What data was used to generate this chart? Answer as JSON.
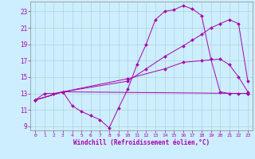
{
  "xlabel": "Windchill (Refroidissement éolien,°C)",
  "background_color": "#cceeff",
  "grid_color": "#aacccc",
  "line_color": "#aa00aa",
  "xlim": [
    -0.5,
    23.5
  ],
  "ylim": [
    8.5,
    24.2
  ],
  "yticks": [
    9,
    11,
    13,
    15,
    17,
    19,
    21,
    23
  ],
  "xticks": [
    0,
    1,
    2,
    3,
    4,
    5,
    6,
    7,
    8,
    9,
    10,
    11,
    12,
    13,
    14,
    15,
    16,
    17,
    18,
    19,
    20,
    21,
    22,
    23
  ],
  "series": [
    {
      "x": [
        0,
        1,
        2,
        3,
        4,
        5,
        6,
        7,
        8,
        9,
        10,
        11,
        12,
        13,
        14,
        15,
        16,
        17,
        18,
        19,
        20,
        21,
        22,
        23
      ],
      "y": [
        12.2,
        13.0,
        13.0,
        13.2,
        11.5,
        10.8,
        10.3,
        9.8,
        8.8,
        11.2,
        13.5,
        16.5,
        19.0,
        22.0,
        23.0,
        23.2,
        23.7,
        23.3,
        22.5,
        17.2,
        13.2,
        13.0,
        13.0,
        13.0
      ]
    },
    {
      "x": [
        0,
        3,
        10,
        12,
        14,
        16,
        17,
        18,
        19,
        20,
        21,
        22,
        23
      ],
      "y": [
        12.2,
        13.2,
        14.5,
        16.0,
        17.5,
        18.8,
        19.5,
        20.2,
        21.0,
        21.5,
        22.0,
        21.5,
        14.5
      ]
    },
    {
      "x": [
        0,
        3,
        23
      ],
      "y": [
        12.2,
        13.2,
        13.0
      ]
    },
    {
      "x": [
        0,
        3,
        10,
        14,
        16,
        18,
        20,
        21,
        22,
        23
      ],
      "y": [
        12.2,
        13.2,
        14.8,
        16.0,
        16.8,
        17.0,
        17.2,
        16.5,
        15.0,
        13.2
      ]
    }
  ]
}
